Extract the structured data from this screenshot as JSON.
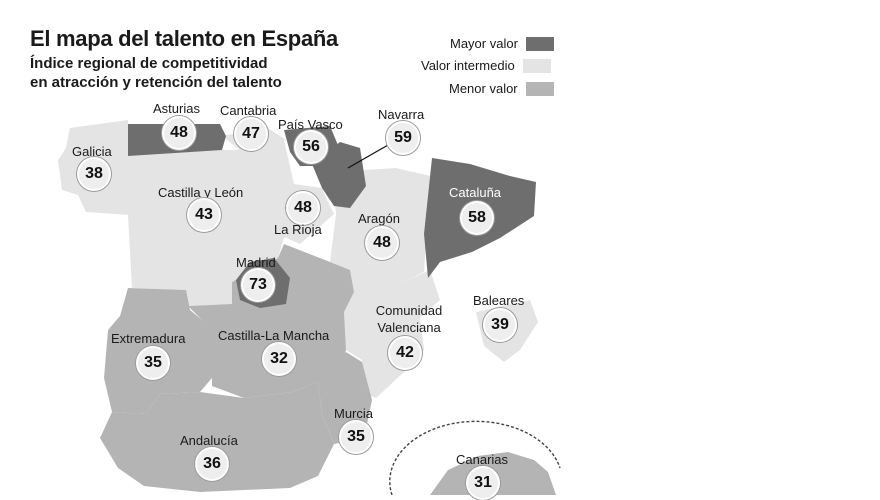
{
  "title": "El mapa del talento en España",
  "subtitle_line1": "Índice regional de competitividad",
  "subtitle_line2": "en atracción y retención del talento",
  "legend": [
    {
      "label": "Mayor valor",
      "color": "#6e6e6e"
    },
    {
      "label": "Valor intermedio",
      "color": "#e4e4e4"
    },
    {
      "label": "Menor valor",
      "color": "#b4b4b4"
    }
  ],
  "colors": {
    "high": "#6e6e6e",
    "mid": "#e4e4e4",
    "low": "#b4b4b4"
  },
  "regions": [
    {
      "name": "Galicia",
      "value": "38",
      "level": "mid"
    },
    {
      "name": "Asturias",
      "value": "48",
      "level": "high"
    },
    {
      "name": "Cantabria",
      "value": "47",
      "level": "mid"
    },
    {
      "name": "País Vasco",
      "value": "56",
      "level": "high"
    },
    {
      "name": "Navarra",
      "value": "59",
      "level": "high"
    },
    {
      "name": "Castilla y León",
      "value": "43",
      "level": "mid"
    },
    {
      "name": "La Rioja",
      "value": "48",
      "level": "mid"
    },
    {
      "name": "Aragón",
      "value": "48",
      "level": "mid"
    },
    {
      "name": "Cataluña",
      "value": "58",
      "level": "high"
    },
    {
      "name": "Madrid",
      "value": "73",
      "level": "high"
    },
    {
      "name": "Baleares",
      "value": "39",
      "level": "mid"
    },
    {
      "name": "Extremadura",
      "value": "35",
      "level": "low"
    },
    {
      "name": "Castilla-La Mancha",
      "value": "32",
      "level": "low"
    },
    {
      "name": "Comunidad Valenciana",
      "value": "42",
      "level": "mid"
    },
    {
      "name": "Murcia",
      "value": "35",
      "level": "low"
    },
    {
      "name": "Andalucía",
      "value": "36",
      "level": "low"
    },
    {
      "name": "Canarias",
      "value": "31",
      "level": "low"
    }
  ]
}
